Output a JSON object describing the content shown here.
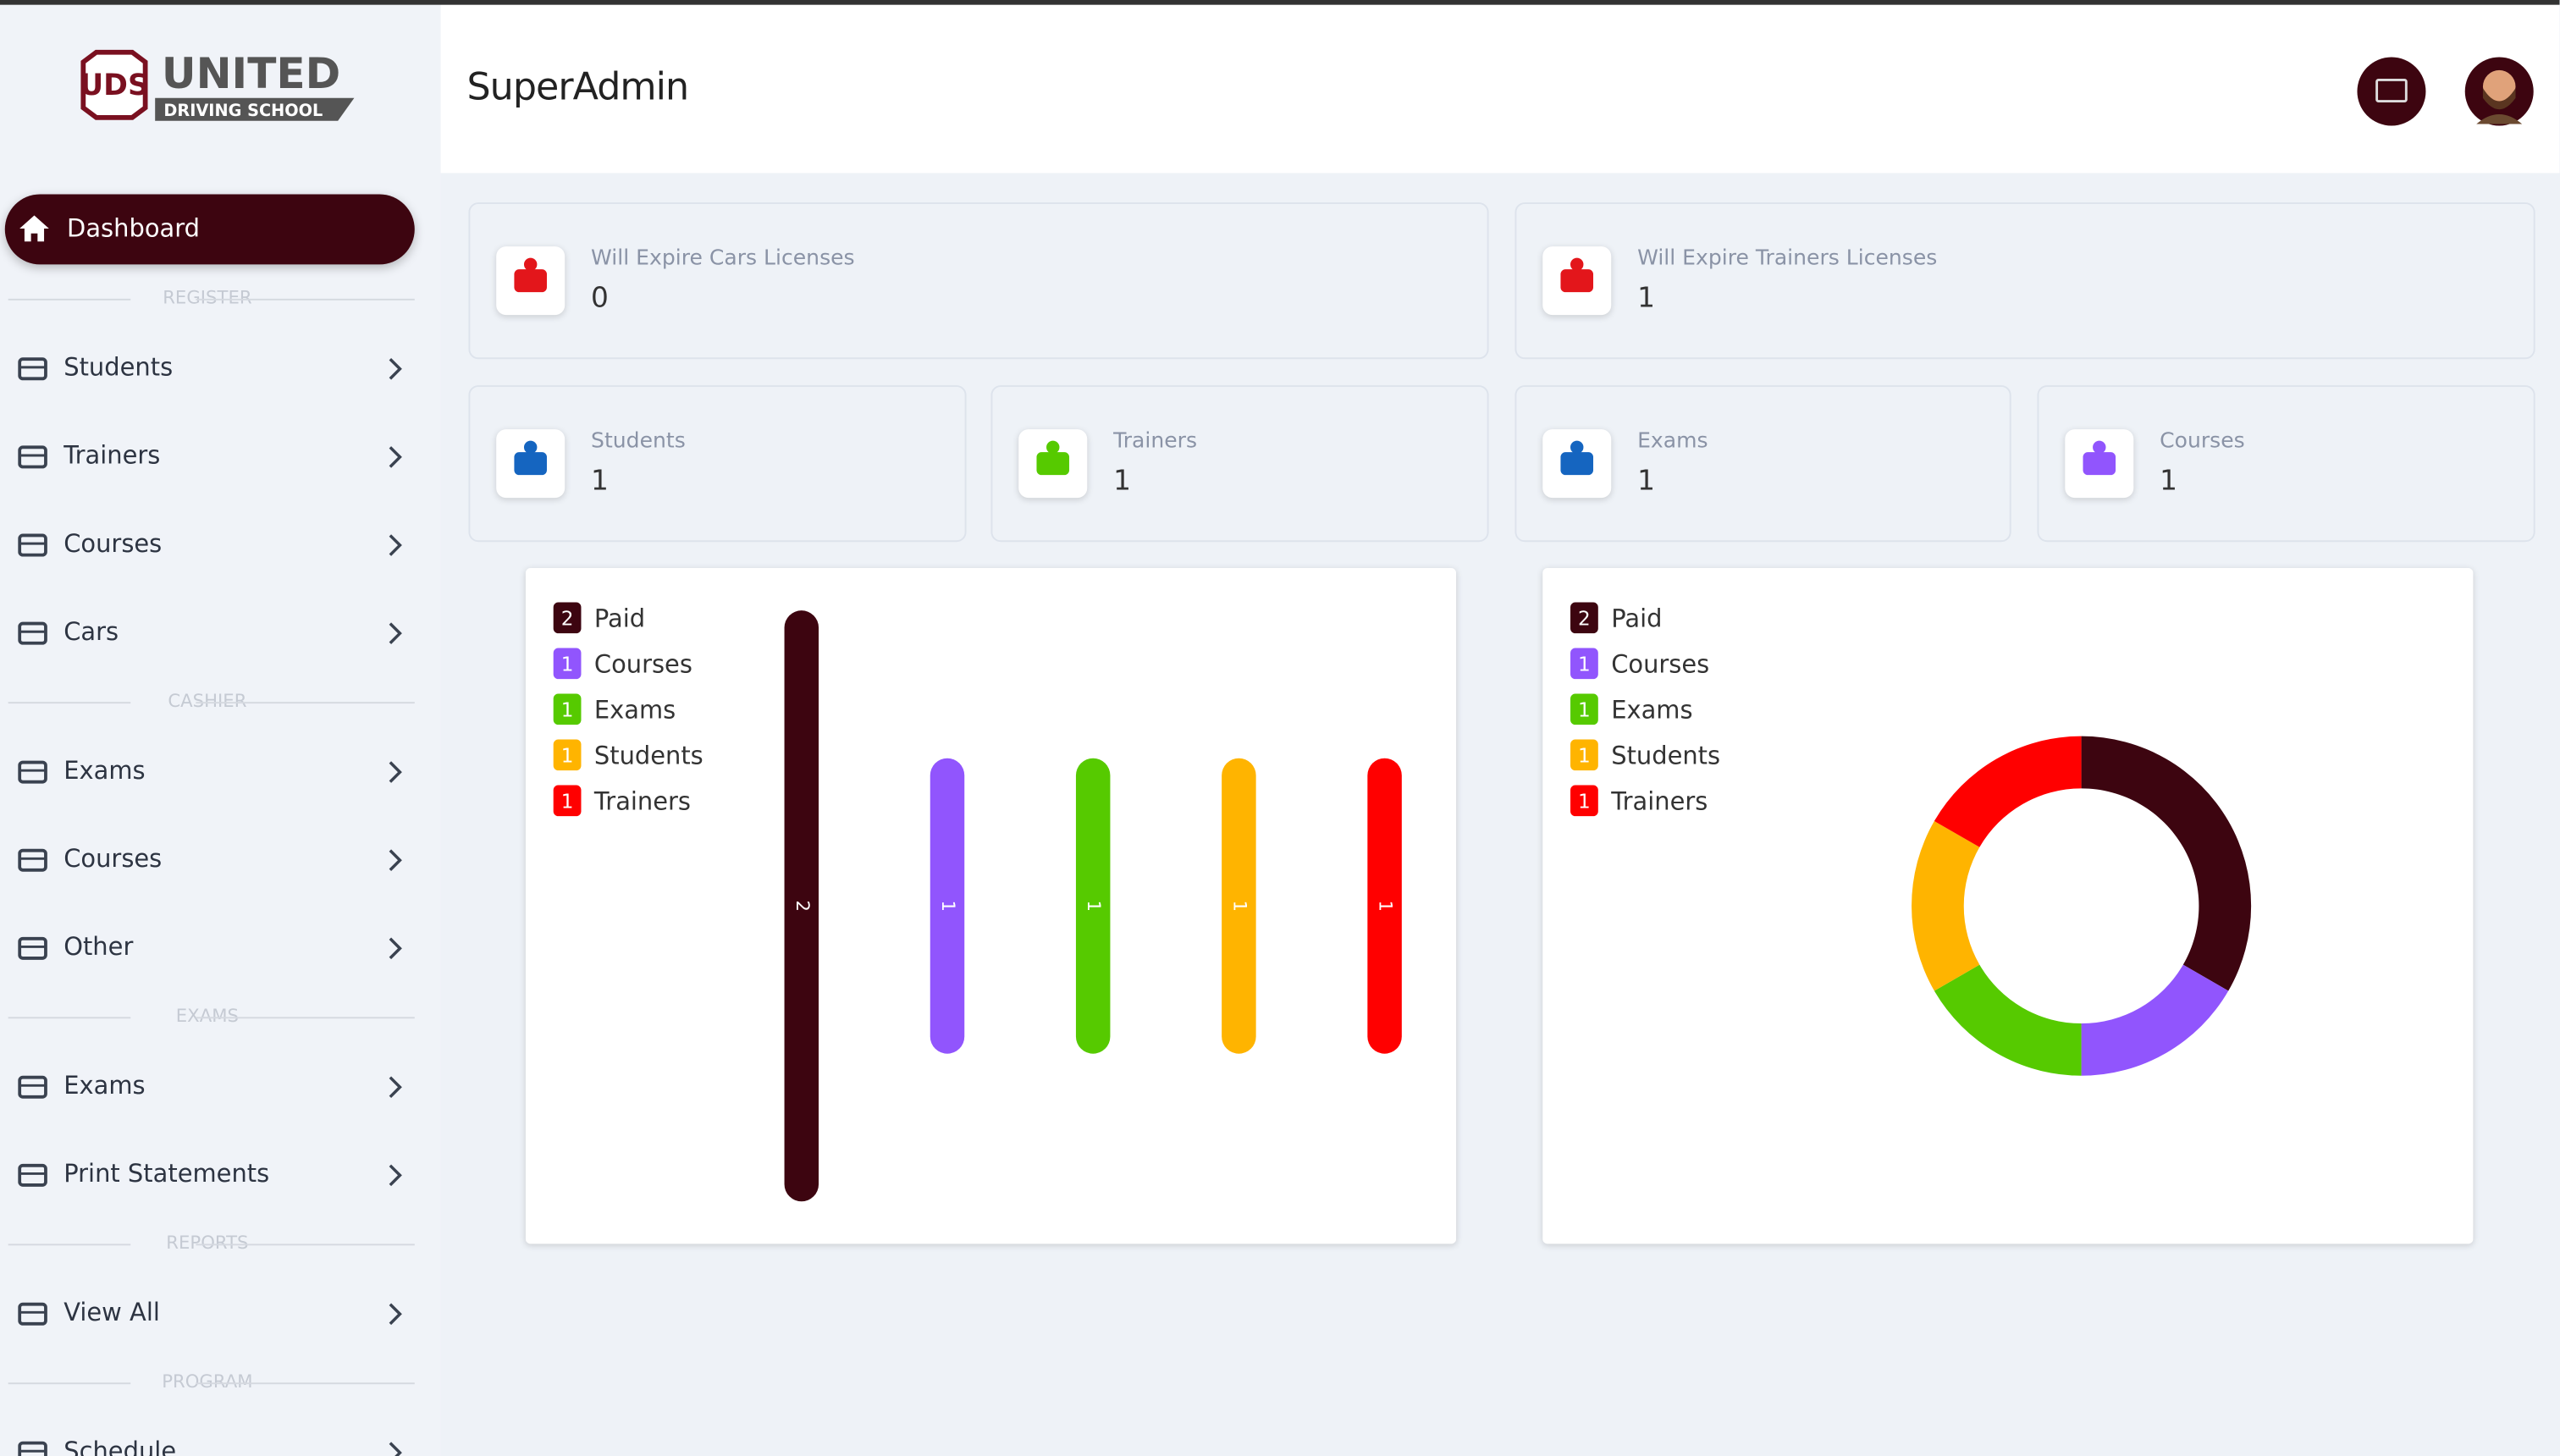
{
  "logo": {
    "title": "UNITED",
    "subtitle": "DRIVING SCHOOL"
  },
  "header": {
    "title": "SuperAdmin"
  },
  "sidebar": {
    "active": "Dashboard",
    "sections": [
      {
        "label": "REGISTER",
        "items": [
          "Students",
          "Trainers",
          "Courses",
          "Cars"
        ]
      },
      {
        "label": "CASHIER",
        "items": [
          "Exams",
          "Courses",
          "Other"
        ]
      },
      {
        "label": "EXAMS",
        "items": [
          "Exams",
          "Print Statements"
        ]
      },
      {
        "label": "REPORTS",
        "items": [
          "View All"
        ]
      },
      {
        "label": "PROGRAM",
        "items": [
          "Schedule"
        ]
      }
    ]
  },
  "cards": [
    {
      "label": "Will Expire Cars Licenses",
      "value": 0,
      "color": "#e3161b"
    },
    {
      "label": "Will Expire Trainers Licenses",
      "value": 1,
      "color": "#e3161b"
    },
    {
      "label": "Students",
      "value": 1,
      "color": "#1565c0"
    },
    {
      "label": "Trainers",
      "value": 1,
      "color": "#56ca00"
    },
    {
      "label": "Exams",
      "value": 1,
      "color": "#1565c0"
    },
    {
      "label": "Courses",
      "value": 1,
      "color": "#9155fd"
    }
  ],
  "chart_data": [
    {
      "type": "bar",
      "categories": [
        "Paid",
        "Courses",
        "Exams",
        "Students",
        "Trainers"
      ],
      "values": [
        2,
        1,
        1,
        1,
        1
      ],
      "colors": [
        "#3d0510",
        "#9155fd",
        "#56ca00",
        "#ffb400",
        "#ff0000"
      ]
    },
    {
      "type": "doughnut",
      "categories": [
        "Paid",
        "Courses",
        "Exams",
        "Students",
        "Trainers"
      ],
      "values": [
        2,
        1,
        1,
        1,
        1
      ],
      "colors": [
        "#3d0510",
        "#9155fd",
        "#56ca00",
        "#ffb400",
        "#ff0000"
      ]
    }
  ]
}
